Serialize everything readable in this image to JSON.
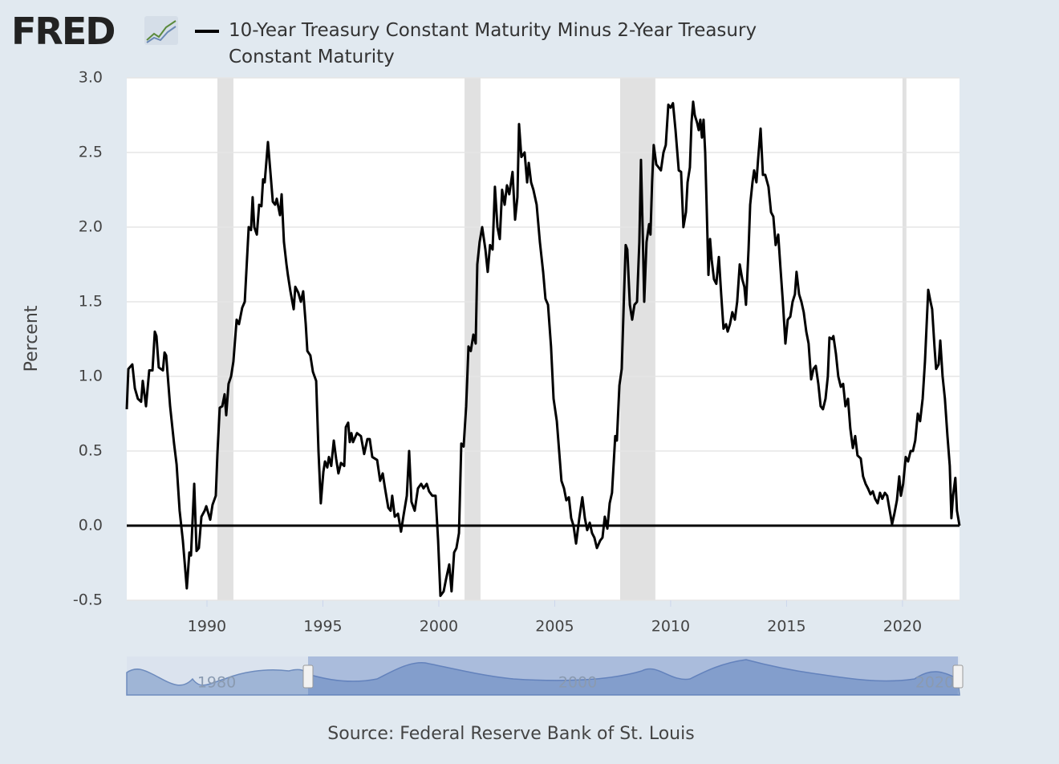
{
  "logo": "FRED",
  "chart_data": {
    "type": "line",
    "y_axis_label": "Percent",
    "source": "Source: Federal Reserve Bank of St. Louis",
    "xlim": [
      1986.54,
      2022.46
    ],
    "xticks": [
      1990,
      1995,
      2000,
      2005,
      2010,
      2015,
      2020
    ],
    "ylim": [
      -0.5,
      3
    ],
    "yticks": [
      {
        "value": 3,
        "label": "3.0"
      },
      2.5,
      {
        "value": 2,
        "label": "2.0"
      },
      1.5,
      {
        "value": 1,
        "label": "1.0"
      },
      0.5,
      {
        "value": 0,
        "label": "0.0"
      },
      -0.5
    ],
    "grid": true,
    "recession_color": "#e1e1e1",
    "recessions": [
      [
        1990.45,
        1991.14
      ],
      [
        2001.11,
        2001.8
      ],
      [
        2007.82,
        2009.34
      ],
      [
        2020.0,
        2020.17
      ]
    ],
    "x": [
      1986.54,
      1986.61,
      1986.78,
      1986.89,
      1987.02,
      1987.16,
      1987.23,
      1987.37,
      1987.51,
      1987.65,
      1987.75,
      1987.82,
      1987.92,
      1988.1,
      1988.17,
      1988.24,
      1988.41,
      1988.58,
      1988.69,
      1988.82,
      1988.96,
      1989.13,
      1989.24,
      1989.31,
      1989.45,
      1989.55,
      1989.65,
      1989.76,
      1989.9,
      1989.97,
      1990.14,
      1990.24,
      1990.38,
      1990.45,
      1990.55,
      1990.66,
      1990.76,
      1990.83,
      1990.93,
      1991.04,
      1991.14,
      1991.28,
      1991.38,
      1991.52,
      1991.63,
      1991.8,
      1991.9,
      1991.97,
      1992.04,
      1992.15,
      1992.25,
      1992.35,
      1992.42,
      1992.49,
      1992.63,
      1992.73,
      1992.84,
      1992.94,
      1993.01,
      1993.15,
      1993.22,
      1993.32,
      1993.43,
      1993.49,
      1993.6,
      1993.74,
      1993.81,
      1993.94,
      1994.05,
      1994.15,
      1994.26,
      1994.33,
      1994.46,
      1994.57,
      1994.71,
      1994.81,
      1994.91,
      1995.02,
      1995.09,
      1995.19,
      1995.26,
      1995.36,
      1995.47,
      1995.57,
      1995.67,
      1995.78,
      1995.92,
      1995.99,
      1996.09,
      1996.16,
      1996.23,
      1996.3,
      1996.47,
      1996.64,
      1996.78,
      1996.92,
      1997.02,
      1997.13,
      1997.34,
      1997.47,
      1997.58,
      1997.68,
      1997.82,
      1997.92,
      1997.99,
      1998.1,
      1998.24,
      1998.37,
      1998.48,
      1998.62,
      1998.72,
      1998.82,
      1998.96,
      1999.1,
      1999.24,
      1999.34,
      1999.48,
      1999.58,
      1999.72,
      1999.86,
      1999.97,
      2000.07,
      2000.21,
      2000.31,
      2000.45,
      2000.55,
      2000.66,
      2000.76,
      2000.87,
      2000.97,
      2001.07,
      2001.18,
      2001.28,
      2001.38,
      2001.49,
      2001.59,
      2001.66,
      2001.76,
      2001.87,
      2002.01,
      2002.11,
      2002.21,
      2002.32,
      2002.42,
      2002.53,
      2002.63,
      2002.73,
      2002.84,
      2002.94,
      2003.04,
      2003.18,
      2003.29,
      2003.39,
      2003.46,
      2003.56,
      2003.7,
      2003.81,
      2003.88,
      2003.98,
      2004.08,
      2004.22,
      2004.36,
      2004.5,
      2004.6,
      2004.71,
      2004.84,
      2004.95,
      2005.09,
      2005.19,
      2005.29,
      2005.4,
      2005.5,
      2005.61,
      2005.71,
      2005.81,
      2005.92,
      2006.06,
      2006.19,
      2006.3,
      2006.4,
      2006.51,
      2006.61,
      2006.71,
      2006.82,
      2006.96,
      2007.06,
      2007.16,
      2007.27,
      2007.37,
      2007.47,
      2007.61,
      2007.68,
      2007.79,
      2007.89,
      2007.99,
      2008.06,
      2008.13,
      2008.24,
      2008.34,
      2008.44,
      2008.55,
      2008.65,
      2008.72,
      2008.79,
      2008.86,
      2008.96,
      2009.07,
      2009.13,
      2009.2,
      2009.27,
      2009.38,
      2009.48,
      2009.58,
      2009.69,
      2009.79,
      2009.9,
      2010.0,
      2010.1,
      2010.21,
      2010.35,
      2010.45,
      2010.55,
      2010.66,
      2010.73,
      2010.83,
      2010.9,
      2010.97,
      2011.04,
      2011.14,
      2011.21,
      2011.28,
      2011.35,
      2011.42,
      2011.49,
      2011.56,
      2011.63,
      2011.7,
      2011.77,
      2011.87,
      2011.97,
      2012.08,
      2012.18,
      2012.28,
      2012.39,
      2012.46,
      2012.56,
      2012.66,
      2012.77,
      2012.87,
      2012.98,
      2013.09,
      2013.18,
      2013.25,
      2013.36,
      2013.43,
      2013.53,
      2013.6,
      2013.7,
      2013.77,
      2013.88,
      2013.98,
      2014.08,
      2014.22,
      2014.33,
      2014.43,
      2014.53,
      2014.64,
      2014.74,
      2014.84,
      2014.95,
      2015.05,
      2015.16,
      2015.26,
      2015.36,
      2015.43,
      2015.54,
      2015.64,
      2015.74,
      2015.85,
      2015.95,
      2016.06,
      2016.16,
      2016.26,
      2016.37,
      2016.47,
      2016.57,
      2016.68,
      2016.78,
      2016.85,
      2016.96,
      2017.02,
      2017.13,
      2017.23,
      2017.34,
      2017.44,
      2017.54,
      2017.65,
      2017.75,
      2017.86,
      2017.96,
      2018.06,
      2018.2,
      2018.3,
      2018.41,
      2018.51,
      2018.62,
      2018.72,
      2018.82,
      2018.93,
      2019.03,
      2019.13,
      2019.24,
      2019.34,
      2019.45,
      2019.55,
      2019.65,
      2019.76,
      2019.86,
      2019.93,
      2020.03,
      2020.14,
      2020.24,
      2020.35,
      2020.45,
      2020.55,
      2020.66,
      2020.76,
      2020.87,
      2020.97,
      2021.11,
      2021.21,
      2021.28,
      2021.38,
      2021.45,
      2021.56,
      2021.63,
      2021.73,
      2021.83,
      2021.94,
      2022.04,
      2022.11,
      2022.18,
      2022.28,
      2022.35,
      2022.46
    ],
    "series": [
      {
        "name": "10-Year Treasury Constant Maturity Minus 2-Year Treasury Constant Maturity",
        "color": "#000000",
        "values": [
          0.78,
          1.05,
          1.08,
          0.92,
          0.85,
          0.83,
          0.97,
          0.8,
          1.04,
          1.04,
          1.3,
          1.27,
          1.06,
          1.04,
          1.16,
          1.14,
          0.8,
          0.55,
          0.41,
          0.1,
          -0.1,
          -0.42,
          -0.18,
          -0.2,
          0.28,
          -0.17,
          -0.15,
          0.06,
          0.1,
          0.13,
          0.04,
          0.14,
          0.2,
          0.48,
          0.79,
          0.8,
          0.88,
          0.74,
          0.95,
          1.0,
          1.1,
          1.38,
          1.35,
          1.46,
          1.5,
          2.0,
          1.98,
          2.2,
          2.0,
          1.95,
          2.15,
          2.14,
          2.32,
          2.3,
          2.57,
          2.38,
          2.17,
          2.15,
          2.19,
          2.08,
          2.22,
          1.9,
          1.75,
          1.68,
          1.57,
          1.45,
          1.6,
          1.56,
          1.5,
          1.57,
          1.35,
          1.17,
          1.14,
          1.03,
          0.97,
          0.5,
          0.15,
          0.36,
          0.43,
          0.39,
          0.46,
          0.4,
          0.57,
          0.45,
          0.35,
          0.42,
          0.4,
          0.66,
          0.69,
          0.56,
          0.62,
          0.56,
          0.62,
          0.6,
          0.48,
          0.58,
          0.58,
          0.46,
          0.44,
          0.3,
          0.35,
          0.25,
          0.12,
          0.1,
          0.2,
          0.06,
          0.08,
          -0.04,
          0.07,
          0.2,
          0.5,
          0.16,
          0.1,
          0.25,
          0.28,
          0.25,
          0.28,
          0.23,
          0.2,
          0.2,
          -0.1,
          -0.47,
          -0.44,
          -0.36,
          -0.26,
          -0.44,
          -0.18,
          -0.15,
          -0.05,
          0.55,
          0.53,
          0.8,
          1.2,
          1.17,
          1.28,
          1.22,
          1.75,
          1.9,
          2.0,
          1.85,
          1.7,
          1.88,
          1.85,
          2.27,
          2.0,
          1.92,
          2.25,
          2.15,
          2.28,
          2.22,
          2.37,
          2.05,
          2.2,
          2.69,
          2.47,
          2.5,
          2.3,
          2.43,
          2.3,
          2.25,
          2.15,
          1.9,
          1.7,
          1.52,
          1.48,
          1.2,
          0.85,
          0.7,
          0.5,
          0.3,
          0.25,
          0.17,
          0.19,
          0.05,
          0,
          -0.12,
          0.05,
          0.19,
          0.05,
          -0.03,
          0.02,
          -0.05,
          -0.08,
          -0.15,
          -0.1,
          -0.08,
          0.06,
          -0.02,
          0.15,
          0.22,
          0.6,
          0.57,
          0.94,
          1.05,
          1.55,
          1.88,
          1.85,
          1.48,
          1.38,
          1.48,
          1.5,
          1.9,
          2.45,
          2.0,
          1.5,
          1.9,
          2.02,
          1.95,
          2.3,
          2.55,
          2.42,
          2.4,
          2.38,
          2.5,
          2.55,
          2.82,
          2.8,
          2.83,
          2.65,
          2.38,
          2.37,
          2.0,
          2.1,
          2.3,
          2.4,
          2.7,
          2.84,
          2.75,
          2.7,
          2.65,
          2.72,
          2.6,
          2.72,
          2.5,
          2.1,
          1.68,
          1.92,
          1.78,
          1.65,
          1.62,
          1.8,
          1.55,
          1.32,
          1.35,
          1.3,
          1.35,
          1.43,
          1.38,
          1.5,
          1.75,
          1.65,
          1.6,
          1.48,
          1.85,
          2.15,
          2.3,
          2.38,
          2.3,
          2.45,
          2.66,
          2.35,
          2.35,
          2.27,
          2.1,
          2.07,
          1.88,
          1.95,
          1.72,
          1.5,
          1.22,
          1.38,
          1.4,
          1.5,
          1.55,
          1.7,
          1.55,
          1.5,
          1.43,
          1.3,
          1.22,
          0.98,
          1.05,
          1.07,
          0.95,
          0.8,
          0.78,
          0.85,
          1.0,
          1.26,
          1.25,
          1.27,
          1.15,
          1.0,
          0.93,
          0.95,
          0.8,
          0.85,
          0.65,
          0.52,
          0.6,
          0.47,
          0.45,
          0.33,
          0.28,
          0.25,
          0.21,
          0.23,
          0.18,
          0.15,
          0.22,
          0.18,
          0.22,
          0.2,
          0.1,
          0.01,
          0.08,
          0.17,
          0.33,
          0.2,
          0.28,
          0.46,
          0.43,
          0.5,
          0.5,
          0.57,
          0.75,
          0.7,
          0.85,
          1.1,
          1.58,
          1.5,
          1.45,
          1.2,
          1.05,
          1.08,
          1.24,
          1.0,
          0.85,
          0.6,
          0.4,
          0.05,
          0.2,
          0.32,
          0.1,
          0
        ]
      }
    ],
    "navigator": {
      "labels": [
        "1980",
        "2000",
        "2020"
      ]
    }
  }
}
